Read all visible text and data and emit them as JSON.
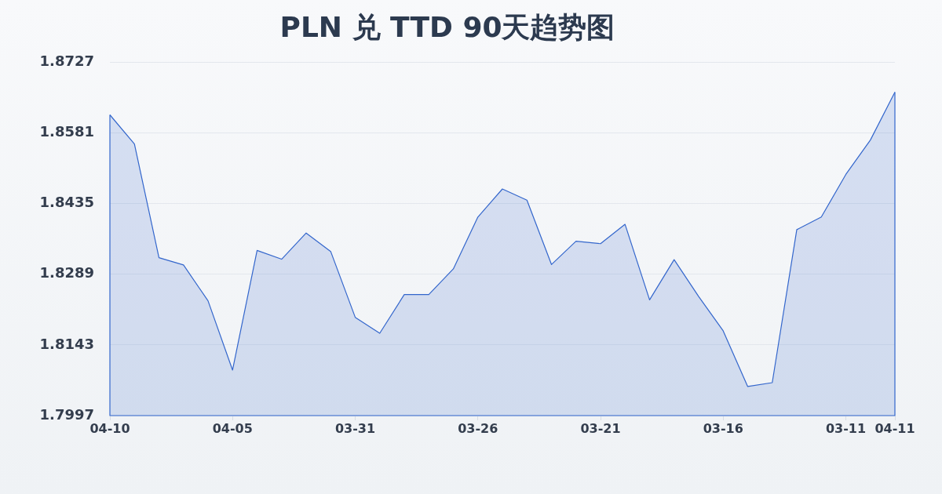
{
  "chart_data": {
    "type": "area",
    "title": "PLN 兑 TTD 90天趋势图",
    "categories": [
      "04-10",
      null,
      null,
      null,
      null,
      "04-05",
      null,
      null,
      null,
      null,
      "03-31",
      null,
      null,
      null,
      null,
      "03-26",
      null,
      null,
      null,
      null,
      "03-21",
      null,
      null,
      null,
      null,
      "03-16",
      null,
      null,
      null,
      null,
      "03-11",
      null,
      "04-11"
    ],
    "series": [
      {
        "color": "#3366cc",
        "values": [
          1.8618,
          1.8558,
          1.8323,
          1.8308,
          1.8234,
          1.8091,
          1.8338,
          1.832,
          1.8374,
          1.8336,
          1.82,
          1.8167,
          1.8247,
          1.8247,
          1.83,
          1.8407,
          1.8465,
          1.8442,
          1.8309,
          1.8357,
          1.8352,
          1.8392,
          1.8236,
          1.8319,
          1.8243,
          1.8172,
          1.8057,
          1.8065,
          1.8381,
          1.8407,
          1.8495,
          1.8566,
          1.8665
        ]
      }
    ],
    "ylim": [
      1.7997,
      1.8727
    ],
    "yticks": [
      1.7997,
      1.8143,
      1.8289,
      1.8435,
      1.8581,
      1.8727
    ],
    "grid": "y",
    "legend": false,
    "marker": "none",
    "line_style": "solid"
  }
}
